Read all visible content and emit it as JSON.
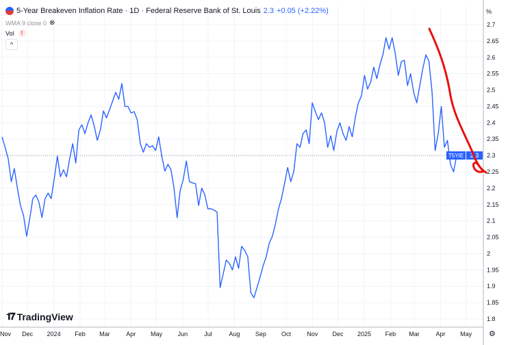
{
  "header": {
    "title": "5-Year Breakeven Inflation Rate · 1D · Federal Reserve Bank of St. Louis",
    "last_value": "2.3",
    "change": "+0.05 (+2.22%)",
    "icon": "us-flag-icon"
  },
  "indicators": {
    "wma": "WMA 9 close 0",
    "wma_icon": "eye-crossed-icon",
    "vol": "Vol",
    "vol_warning": "!",
    "collapse": "^"
  },
  "logo": {
    "mark": "TV",
    "text": "TradingView"
  },
  "axis_unit": "%",
  "price_label": {
    "symbol": "T5YIE",
    "value": "2.3"
  },
  "colors": {
    "line": "#2962ff",
    "annotation": "#e8100c",
    "label_bg": "#2962ff"
  },
  "chart_data": {
    "type": "line",
    "title": "5-Year Breakeven Inflation Rate",
    "x_range": [
      "2023-11-01",
      "2025-04-20"
    ],
    "ylim": [
      1.78,
      2.74
    ],
    "y_ticks": [
      "2.7",
      "2.65",
      "2.6",
      "2.55",
      "2.5",
      "2.45",
      "2.4",
      "2.35",
      "2.3",
      "2.25",
      "2.2",
      "2.15",
      "2.1",
      "2.05",
      "2",
      "1.95",
      "1.9",
      "1.85",
      "1.8"
    ],
    "x_ticks": [
      {
        "label": "Nov",
        "date": "2023-11-01"
      },
      {
        "label": "Dec",
        "date": "2023-12-01"
      },
      {
        "label": "2024",
        "date": "2024-01-01"
      },
      {
        "label": "Feb",
        "date": "2024-02-01"
      },
      {
        "label": "Mar",
        "date": "2024-03-01"
      },
      {
        "label": "Apr",
        "date": "2024-04-01"
      },
      {
        "label": "May",
        "date": "2024-05-01"
      },
      {
        "label": "Jun",
        "date": "2024-06-01"
      },
      {
        "label": "Jul",
        "date": "2024-07-01"
      },
      {
        "label": "Aug",
        "date": "2024-08-01"
      },
      {
        "label": "Sep",
        "date": "2024-09-01"
      },
      {
        "label": "Oct",
        "date": "2024-10-01"
      },
      {
        "label": "Nov",
        "date": "2024-11-01"
      },
      {
        "label": "Dec",
        "date": "2024-12-01"
      },
      {
        "label": "2025",
        "date": "2025-01-01"
      },
      {
        "label": "Feb",
        "date": "2025-02-01"
      },
      {
        "label": "Mar",
        "date": "2025-03-01"
      },
      {
        "label": "Apr",
        "date": "2025-04-01"
      },
      {
        "label": "May",
        "date": "2025-05-01"
      }
    ],
    "grid": true,
    "last_value": 2.3,
    "values": [
      2.357,
      2.325,
      2.29,
      2.22,
      2.26,
      2.2,
      2.147,
      2.116,
      2.053,
      2.106,
      2.168,
      2.179,
      2.158,
      2.11,
      2.168,
      2.185,
      2.168,
      2.23,
      2.298,
      2.235,
      2.256,
      2.235,
      2.29,
      2.336,
      2.277,
      2.378,
      2.394,
      2.367,
      2.4,
      2.424,
      2.39,
      2.346,
      2.378,
      2.436,
      2.415,
      2.44,
      2.466,
      2.493,
      2.472,
      2.52,
      2.45,
      2.45,
      2.43,
      2.434,
      2.41,
      2.336,
      2.31,
      2.336,
      2.325,
      2.33,
      2.315,
      2.357,
      2.298,
      2.252,
      2.273,
      2.256,
      2.2,
      2.11,
      2.193,
      2.227,
      2.283,
      2.22,
      2.216,
      2.214,
      2.147,
      2.2,
      2.18,
      2.137,
      2.137,
      2.133,
      2.127,
      1.896,
      1.938,
      1.98,
      1.97,
      1.95,
      1.99,
      1.955,
      2.022,
      2.01,
      1.99,
      1.88,
      1.865,
      1.896,
      1.928,
      1.963,
      1.99,
      2.032,
      2.053,
      2.09,
      2.137,
      2.17,
      2.216,
      2.263,
      2.22,
      2.252,
      2.336,
      2.325,
      2.367,
      2.378,
      2.336,
      2.461,
      2.434,
      2.41,
      2.43,
      2.4,
      2.325,
      2.36,
      2.315,
      2.373,
      2.4,
      2.367,
      2.346,
      2.388,
      2.357,
      2.415,
      2.461,
      2.482,
      2.545,
      2.503,
      2.524,
      2.57,
      2.535,
      2.576,
      2.608,
      2.66,
      2.625,
      2.66,
      2.612,
      2.545,
      2.587,
      2.591,
      2.514,
      2.55,
      2.493,
      2.461,
      2.514,
      2.566,
      2.608,
      2.587,
      2.493,
      2.315,
      2.367,
      2.45,
      2.325,
      2.346,
      2.273,
      2.25,
      2.3
    ]
  }
}
